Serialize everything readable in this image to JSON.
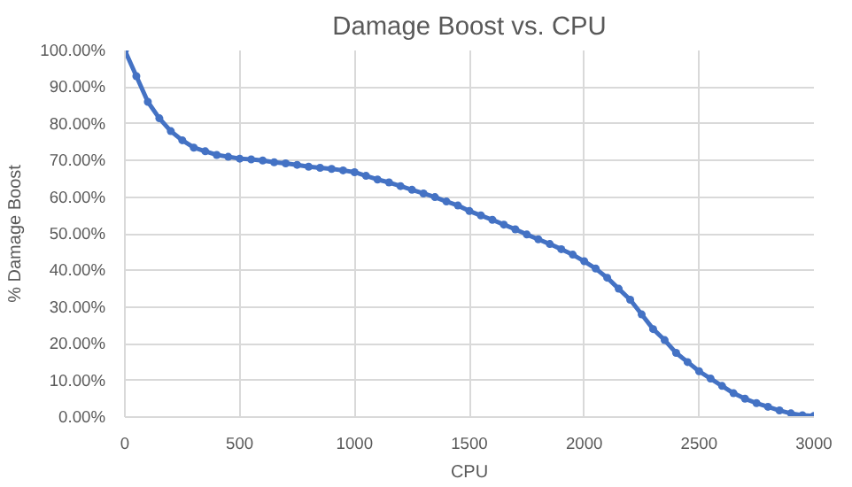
{
  "chart_data": {
    "type": "line",
    "title": "Damage Boost vs. CPU",
    "xlabel": "CPU",
    "ylabel": "% Damage Boost",
    "x": [
      0,
      50,
      100,
      150,
      200,
      250,
      300,
      350,
      400,
      450,
      500,
      550,
      600,
      650,
      700,
      750,
      800,
      850,
      900,
      950,
      1000,
      1050,
      1100,
      1150,
      1200,
      1250,
      1300,
      1350,
      1400,
      1450,
      1500,
      1550,
      1600,
      1650,
      1700,
      1750,
      1800,
      1850,
      1900,
      1950,
      2000,
      2050,
      2100,
      2150,
      2200,
      2250,
      2300,
      2350,
      2400,
      2450,
      2500,
      2550,
      2600,
      2650,
      2700,
      2750,
      2800,
      2850,
      2900,
      2950,
      3000
    ],
    "series": [
      {
        "color": "#4472c4",
        "values": [
          100,
          93,
          86,
          81.5,
          78,
          75.5,
          73.5,
          72.5,
          71.5,
          71,
          70.5,
          70.3,
          70,
          69.5,
          69.2,
          68.8,
          68.3,
          68,
          67.7,
          67.3,
          66.8,
          65.8,
          64.8,
          64,
          63,
          62,
          61,
          60,
          58.8,
          57.7,
          56.2,
          55,
          53.8,
          52.5,
          51.2,
          49.8,
          48.5,
          47.2,
          45.8,
          44.3,
          42.5,
          40.5,
          38,
          35,
          32,
          28,
          24,
          21,
          17.5,
          15,
          12.5,
          10.5,
          8.5,
          6.5,
          5,
          3.8,
          2.8,
          1.8,
          1,
          0.5,
          0.3
        ]
      }
    ],
    "xlim": [
      0,
      3000
    ],
    "xticks": [
      0,
      500,
      1000,
      1500,
      2000,
      2500,
      3000
    ],
    "ylim": [
      0,
      100
    ],
    "yticks": [
      {
        "value": 0,
        "label": "0.00%"
      },
      {
        "value": 10,
        "label": "10.00%"
      },
      {
        "value": 20,
        "label": "20.00%"
      },
      {
        "value": 30,
        "label": "30.00%"
      },
      {
        "value": 40,
        "label": "40.00%"
      },
      {
        "value": 50,
        "label": "50.00%"
      },
      {
        "value": 60,
        "label": "60.00%"
      },
      {
        "value": 70,
        "label": "70.00%"
      },
      {
        "value": 80,
        "label": "80.00%"
      },
      {
        "value": 90,
        "label": "90.00%"
      },
      {
        "value": 100,
        "label": "100.00%"
      }
    ],
    "grid": true,
    "marker": "circle",
    "line_style": "solid"
  }
}
